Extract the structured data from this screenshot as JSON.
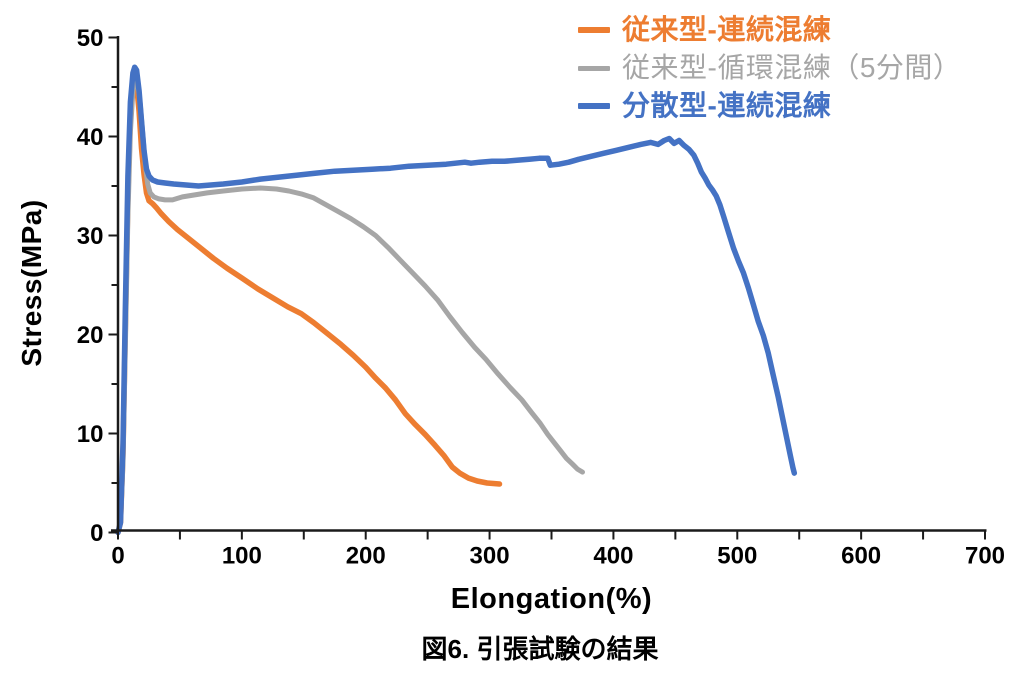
{
  "chart_data": {
    "type": "line",
    "title": "",
    "xlabel": "Elongation(%)",
    "ylabel": "Stress(MPa)",
    "caption": "図6. 引張試験の結果",
    "xlim": [
      0,
      700
    ],
    "ylim": [
      0,
      50
    ],
    "x_major_ticks": [
      0,
      100,
      200,
      300,
      400,
      500,
      600,
      700
    ],
    "x_minor_tick_step": 50,
    "y_major_ticks": [
      0,
      10,
      20,
      30,
      40,
      50
    ],
    "y_minor_tick_step": 5,
    "grid": false,
    "legend_position": "top-right",
    "axis_color": "#1a1a1a",
    "series": [
      {
        "key": "conventional-continuous",
        "name": "従来型-連続混練",
        "color": "#ED7D31",
        "label_bold": true,
        "line_width": 5.5,
        "points": [
          [
            0,
            0
          ],
          [
            2,
            1
          ],
          [
            4,
            8
          ],
          [
            6,
            21
          ],
          [
            8,
            34
          ],
          [
            10,
            42
          ],
          [
            12,
            45.3
          ],
          [
            13.5,
            45.9
          ],
          [
            15,
            45.2
          ],
          [
            17,
            42.5
          ],
          [
            19,
            38.8
          ],
          [
            21,
            36.2
          ],
          [
            23,
            34.3
          ],
          [
            25,
            33.5
          ],
          [
            28,
            33.2
          ],
          [
            31,
            32.8
          ],
          [
            35,
            32.2
          ],
          [
            41,
            31.4
          ],
          [
            48,
            30.6
          ],
          [
            56,
            29.8
          ],
          [
            65,
            28.9
          ],
          [
            77,
            27.7
          ],
          [
            88,
            26.7
          ],
          [
            100,
            25.7
          ],
          [
            113,
            24.6
          ],
          [
            125,
            23.7
          ],
          [
            137,
            22.8
          ],
          [
            148,
            22.1
          ],
          [
            158,
            21.2
          ],
          [
            170,
            20.0
          ],
          [
            180,
            19.0
          ],
          [
            190,
            17.9
          ],
          [
            200,
            16.7
          ],
          [
            208,
            15.6
          ],
          [
            216,
            14.6
          ],
          [
            224,
            13.4
          ],
          [
            232,
            12.0
          ],
          [
            240,
            10.9
          ],
          [
            248,
            9.9
          ],
          [
            256,
            8.8
          ],
          [
            263,
            7.8
          ],
          [
            270,
            6.6
          ],
          [
            276,
            6.0
          ],
          [
            283,
            5.5
          ],
          [
            290,
            5.2
          ],
          [
            298,
            5.0
          ],
          [
            308,
            4.9
          ]
        ]
      },
      {
        "key": "conventional-circulating-5min",
        "name": "従来型-循環混練（5分間）",
        "color": "#A6A6A6",
        "label_bold": false,
        "line_width": 5,
        "points": [
          [
            0,
            0
          ],
          [
            2,
            1
          ],
          [
            4,
            7
          ],
          [
            6,
            19
          ],
          [
            8,
            32
          ],
          [
            10,
            40.5
          ],
          [
            12,
            44.6
          ],
          [
            14,
            45.9
          ],
          [
            16,
            45.3
          ],
          [
            18,
            43.2
          ],
          [
            20,
            40.2
          ],
          [
            22,
            37.2
          ],
          [
            24,
            35.2
          ],
          [
            26,
            34.3
          ],
          [
            29,
            33.9
          ],
          [
            33,
            33.7
          ],
          [
            38,
            33.6
          ],
          [
            44,
            33.6
          ],
          [
            52,
            33.9
          ],
          [
            62,
            34.1
          ],
          [
            72,
            34.3
          ],
          [
            85,
            34.5
          ],
          [
            100,
            34.7
          ],
          [
            115,
            34.8
          ],
          [
            128,
            34.7
          ],
          [
            138,
            34.5
          ],
          [
            148,
            34.2
          ],
          [
            158,
            33.8
          ],
          [
            168,
            33.1
          ],
          [
            178,
            32.4
          ],
          [
            188,
            31.7
          ],
          [
            198,
            30.9
          ],
          [
            208,
            30.0
          ],
          [
            218,
            28.8
          ],
          [
            228,
            27.5
          ],
          [
            238,
            26.2
          ],
          [
            248,
            24.9
          ],
          [
            258,
            23.5
          ],
          [
            268,
            21.8
          ],
          [
            278,
            20.2
          ],
          [
            288,
            18.7
          ],
          [
            297,
            17.5
          ],
          [
            307,
            16.0
          ],
          [
            317,
            14.6
          ],
          [
            326,
            13.4
          ],
          [
            334,
            12.1
          ],
          [
            341,
            11.0
          ],
          [
            347,
            9.9
          ],
          [
            352,
            9.1
          ],
          [
            357,
            8.3
          ],
          [
            362,
            7.5
          ],
          [
            367,
            6.9
          ],
          [
            371,
            6.4
          ],
          [
            375,
            6.1
          ]
        ]
      },
      {
        "key": "dispersed-continuous",
        "name": "分散型-連続混練",
        "color": "#4472C4",
        "label_bold": true,
        "line_width": 5.5,
        "points": [
          [
            0,
            0
          ],
          [
            2,
            1
          ],
          [
            4,
            9
          ],
          [
            6,
            23
          ],
          [
            8,
            36
          ],
          [
            10,
            43.5
          ],
          [
            12,
            46.4
          ],
          [
            13.5,
            47.0
          ],
          [
            15,
            46.7
          ],
          [
            17,
            44.6
          ],
          [
            19,
            41.6
          ],
          [
            21,
            38.6
          ],
          [
            23,
            36.7
          ],
          [
            25,
            36.0
          ],
          [
            28,
            35.6
          ],
          [
            32,
            35.4
          ],
          [
            38,
            35.3
          ],
          [
            45,
            35.2
          ],
          [
            55,
            35.1
          ],
          [
            65,
            35.0
          ],
          [
            75,
            35.1
          ],
          [
            85,
            35.2
          ],
          [
            100,
            35.4
          ],
          [
            115,
            35.7
          ],
          [
            130,
            35.9
          ],
          [
            145,
            36.1
          ],
          [
            160,
            36.3
          ],
          [
            175,
            36.5
          ],
          [
            190,
            36.6
          ],
          [
            205,
            36.7
          ],
          [
            220,
            36.8
          ],
          [
            235,
            37.0
          ],
          [
            250,
            37.1
          ],
          [
            265,
            37.2
          ],
          [
            280,
            37.4
          ],
          [
            285,
            37.3
          ],
          [
            292,
            37.4
          ],
          [
            302,
            37.5
          ],
          [
            312,
            37.5
          ],
          [
            322,
            37.6
          ],
          [
            332,
            37.7
          ],
          [
            340,
            37.8
          ],
          [
            347,
            37.8
          ],
          [
            349,
            37.1
          ],
          [
            356,
            37.2
          ],
          [
            364,
            37.4
          ],
          [
            372,
            37.7
          ],
          [
            382,
            38.0
          ],
          [
            392,
            38.3
          ],
          [
            402,
            38.6
          ],
          [
            412,
            38.9
          ],
          [
            422,
            39.2
          ],
          [
            430,
            39.4
          ],
          [
            436,
            39.2
          ],
          [
            441,
            39.6
          ],
          [
            445,
            39.8
          ],
          [
            449,
            39.3
          ],
          [
            453,
            39.6
          ],
          [
            457,
            39.1
          ],
          [
            461,
            38.7
          ],
          [
            465,
            38.1
          ],
          [
            468,
            37.3
          ],
          [
            471,
            36.4
          ],
          [
            474,
            35.8
          ],
          [
            477,
            35.1
          ],
          [
            480,
            34.6
          ],
          [
            483,
            34.0
          ],
          [
            486,
            33.1
          ],
          [
            489,
            31.9
          ],
          [
            493,
            30.3
          ],
          [
            497,
            28.7
          ],
          [
            501,
            27.4
          ],
          [
            505,
            26.2
          ],
          [
            509,
            24.7
          ],
          [
            513,
            23.0
          ],
          [
            517,
            21.3
          ],
          [
            521,
            19.9
          ],
          [
            525,
            18.1
          ],
          [
            529,
            15.9
          ],
          [
            533,
            13.7
          ],
          [
            537,
            11.3
          ],
          [
            540,
            9.5
          ],
          [
            543,
            7.7
          ],
          [
            545,
            6.5
          ],
          [
            546,
            6.0
          ]
        ]
      }
    ]
  }
}
